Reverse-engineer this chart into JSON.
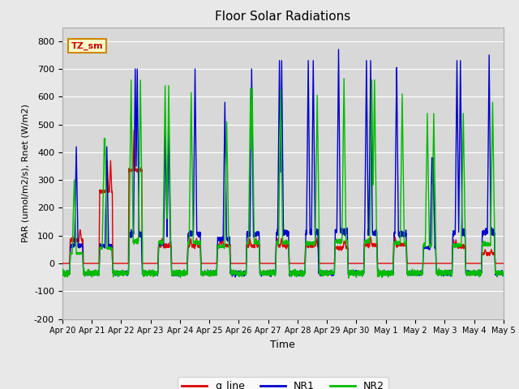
{
  "title": "Floor Solar Radiations",
  "xlabel": "Time",
  "ylabel": "PAR (umol/m2/s), Rnet (W/m2)",
  "ylim": [
    -200,
    850
  ],
  "yticks": [
    -200,
    -100,
    0,
    100,
    200,
    300,
    400,
    500,
    600,
    700,
    800
  ],
  "plot_bg_color": "#d8d8d8",
  "fig_bg_color": "#e8e8e8",
  "legend_label": "TZ_sm",
  "line_colors": {
    "q_line": "#dd0000",
    "NR1": "#0000cc",
    "NR2": "#00bb00"
  },
  "line_widths": {
    "q_line": 1.0,
    "NR1": 1.0,
    "NR2": 1.0
  },
  "xtick_labels": [
    "Apr 20",
    "Apr 21",
    "Apr 22",
    "Apr 23",
    "Apr 24",
    "Apr 25",
    "Apr 26",
    "Apr 27",
    "Apr 28",
    "Apr 29",
    "Apr 30",
    "May 1",
    "May 2",
    "May 3",
    "May 4",
    "May 5"
  ],
  "num_days": 15,
  "points_per_day": 288,
  "peaks_NR1": [
    420,
    420,
    700,
    480,
    700,
    580,
    700,
    730,
    730,
    770,
    730,
    705,
    380,
    730,
    750
  ],
  "peaks_NR2": [
    300,
    450,
    660,
    640,
    615,
    510,
    630,
    625,
    605,
    665,
    660,
    610,
    540,
    540,
    580
  ],
  "peaks_q": [
    120,
    370,
    480,
    90,
    90,
    90,
    90,
    90,
    90,
    80,
    95,
    95,
    0,
    85,
    50
  ]
}
